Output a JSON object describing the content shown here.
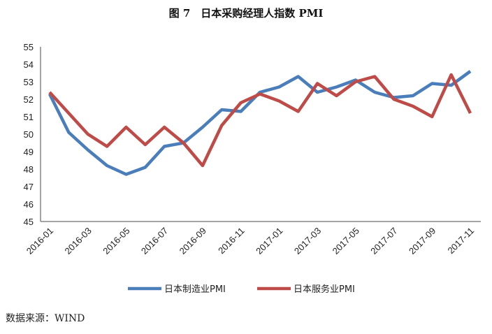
{
  "chart_data": {
    "type": "line",
    "title": "图 7　日本采购经理人指数 PMI",
    "source": "数据来源：WIND",
    "x": [
      "2016-01",
      "2016-02",
      "2016-03",
      "2016-04",
      "2016-05",
      "2016-06",
      "2016-07",
      "2016-08",
      "2016-09",
      "2016-10",
      "2016-11",
      "2016-12",
      "2017-01",
      "2017-02",
      "2017-03",
      "2017-04",
      "2017-05",
      "2017-06",
      "2017-07",
      "2017-08",
      "2017-09",
      "2017-10",
      "2017-11"
    ],
    "xticks": [
      "2016-01",
      "2016-03",
      "2016-05",
      "2016-07",
      "2016-09",
      "2016-11",
      "2017-01",
      "2017-03",
      "2017-05",
      "2017-07",
      "2017-09",
      "2017-11"
    ],
    "ylim": [
      45,
      55
    ],
    "yticks": [
      45,
      46,
      47,
      48,
      49,
      50,
      51,
      52,
      53,
      54,
      55
    ],
    "grid": false,
    "legend_position": "bottom",
    "series": [
      {
        "name": "日本制造业PMI",
        "color": "#4a7ebb",
        "values": [
          52.3,
          50.1,
          49.1,
          48.2,
          47.7,
          48.1,
          49.3,
          49.5,
          50.4,
          51.4,
          51.3,
          52.4,
          52.7,
          53.3,
          52.4,
          52.7,
          53.1,
          52.4,
          52.1,
          52.2,
          52.9,
          52.8,
          53.6
        ]
      },
      {
        "name": "日本服务业PMI",
        "color": "#be4b48",
        "values": [
          52.4,
          51.2,
          50.0,
          49.3,
          50.4,
          49.4,
          50.4,
          49.5,
          48.2,
          50.5,
          51.8,
          52.3,
          51.9,
          51.3,
          52.9,
          52.2,
          53.0,
          53.3,
          52.0,
          51.6,
          51.0,
          53.4,
          51.2
        ]
      }
    ]
  }
}
